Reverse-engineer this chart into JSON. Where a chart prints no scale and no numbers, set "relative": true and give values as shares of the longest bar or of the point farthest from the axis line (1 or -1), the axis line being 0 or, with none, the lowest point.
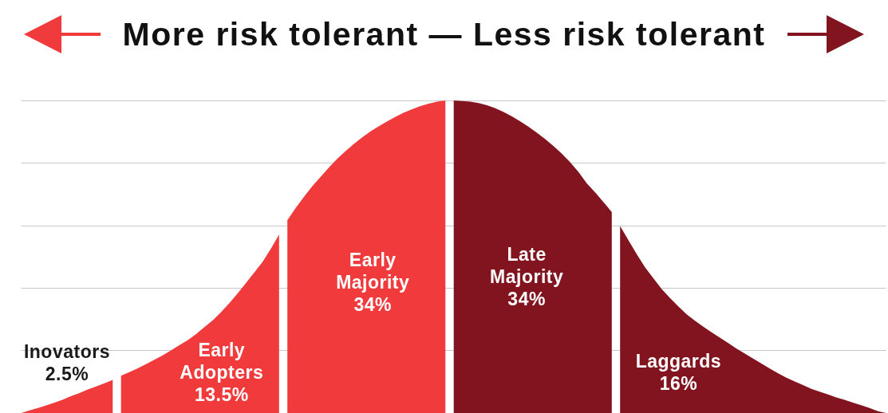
{
  "chart_data": {
    "type": "area",
    "title": "More risk tolerant — Less risk tolerant",
    "relative": true,
    "grid": "y",
    "tick_labels": false,
    "categories": [
      null,
      null,
      null,
      null,
      null,
      null,
      null,
      null,
      null,
      null,
      null,
      null,
      null,
      null,
      null,
      null,
      null,
      null,
      null,
      null,
      null,
      null,
      null,
      null,
      null,
      null,
      null,
      null,
      null,
      null,
      null,
      null,
      null,
      null,
      null,
      null,
      null,
      null,
      null,
      null,
      null,
      null,
      null,
      null,
      null,
      null,
      null,
      null,
      null,
      null,
      null,
      null,
      null,
      null,
      null,
      null,
      null,
      null,
      null,
      null,
      null,
      null,
      null,
      null,
      null,
      null,
      null,
      null,
      null,
      null,
      null,
      null,
      null,
      null,
      null,
      null,
      null,
      null,
      null,
      null,
      null,
      null,
      null,
      null,
      null,
      null,
      null,
      null,
      null,
      null,
      null,
      null,
      null,
      null,
      null,
      null,
      null,
      null,
      null,
      null,
      null,
      null,
      null,
      null,
      null
    ],
    "series": [
      {
        "name": "Inovators",
        "color": "#f03a3c",
        "values": [
          0,
          0.008,
          0.016,
          0.024,
          0.033,
          0.043,
          0.054,
          0.064,
          0.075,
          0.085,
          0.095,
          0.106,
          null,
          null,
          null,
          null,
          null,
          null,
          null,
          null,
          null,
          null,
          null,
          null,
          null,
          null,
          null,
          null,
          null,
          null,
          null,
          null,
          null,
          null,
          null,
          null,
          null,
          null,
          null,
          null,
          null,
          null,
          null,
          null,
          null,
          null,
          null,
          null,
          null,
          null,
          null,
          null,
          null,
          null,
          null,
          null,
          null,
          null,
          null,
          null,
          null,
          null,
          null,
          null,
          null,
          null,
          null,
          null,
          null,
          null,
          null,
          null,
          null,
          null,
          null,
          null,
          null,
          null,
          null,
          null,
          null,
          null,
          null,
          null,
          null,
          null,
          null,
          null,
          null,
          null,
          null,
          null,
          null,
          null,
          null,
          null,
          null,
          null,
          null,
          null,
          null,
          null,
          null,
          null,
          null
        ]
      },
      {
        "name": "Early Adopters",
        "color": "#f03a3c",
        "values": [
          null,
          null,
          null,
          null,
          null,
          null,
          null,
          null,
          null,
          null,
          null,
          null,
          0.119,
          0.131,
          0.143,
          0.156,
          0.17,
          0.184,
          0.2,
          0.217,
          0.233,
          0.252,
          0.274,
          0.296,
          0.322,
          0.351,
          0.382,
          0.415,
          0.449,
          0.483,
          0.525,
          0.571,
          null,
          null,
          null,
          null,
          null,
          null,
          null,
          null,
          null,
          null,
          null,
          null,
          null,
          null,
          null,
          null,
          null,
          null,
          null,
          null,
          null,
          null,
          null,
          null,
          null,
          null,
          null,
          null,
          null,
          null,
          null,
          null,
          null,
          null,
          null,
          null,
          null,
          null,
          null,
          null,
          null,
          null,
          null,
          null,
          null,
          null,
          null,
          null,
          null,
          null,
          null,
          null,
          null,
          null,
          null,
          null,
          null,
          null,
          null,
          null,
          null,
          null,
          null,
          null,
          null,
          null,
          null,
          null,
          null,
          null,
          null,
          null,
          null
        ]
      },
      {
        "name": "Early Majority",
        "color": "#f03a3c",
        "values": [
          null,
          null,
          null,
          null,
          null,
          null,
          null,
          null,
          null,
          null,
          null,
          null,
          null,
          null,
          null,
          null,
          null,
          null,
          null,
          null,
          null,
          null,
          null,
          null,
          null,
          null,
          null,
          null,
          null,
          null,
          null,
          null,
          0.617,
          0.656,
          0.692,
          0.726,
          0.756,
          0.786,
          0.814,
          0.838,
          0.861,
          0.882,
          0.901,
          0.918,
          0.933,
          0.948,
          0.961,
          0.972,
          0.982,
          0.99,
          0.996,
          1,
          null,
          null,
          null,
          null,
          null,
          null,
          null,
          null,
          null,
          null,
          null,
          null,
          null,
          null,
          null,
          null,
          null,
          null,
          null,
          null,
          null,
          null,
          null,
          null,
          null,
          null,
          null,
          null,
          null,
          null,
          null,
          null,
          null,
          null,
          null,
          null,
          null,
          null,
          null,
          null,
          null,
          null,
          null,
          null,
          null,
          null,
          null,
          null,
          null,
          null,
          null,
          null,
          null
        ]
      },
      {
        "name": "Late Majority",
        "color": "#82141f",
        "values": [
          null,
          null,
          null,
          null,
          null,
          null,
          null,
          null,
          null,
          null,
          null,
          null,
          null,
          null,
          null,
          null,
          null,
          null,
          null,
          null,
          null,
          null,
          null,
          null,
          null,
          null,
          null,
          null,
          null,
          null,
          null,
          null,
          null,
          null,
          null,
          null,
          null,
          null,
          null,
          null,
          null,
          null,
          null,
          null,
          null,
          null,
          null,
          null,
          null,
          null,
          null,
          null,
          1,
          0.998,
          0.996,
          0.992,
          0.985,
          0.975,
          0.963,
          0.949,
          0.933,
          0.916,
          0.897,
          0.876,
          0.854,
          0.83,
          0.802,
          0.771,
          0.735,
          0.706,
          0.675,
          0.643,
          null,
          null,
          null,
          null,
          null,
          null,
          null,
          null,
          null,
          null,
          null,
          null,
          null,
          null,
          null,
          null,
          null,
          null,
          null,
          null,
          null,
          null,
          null,
          null,
          null,
          null,
          null,
          null,
          null,
          null,
          null,
          null,
          null
        ]
      },
      {
        "name": "Laggards",
        "color": "#82141f",
        "values": [
          null,
          null,
          null,
          null,
          null,
          null,
          null,
          null,
          null,
          null,
          null,
          null,
          null,
          null,
          null,
          null,
          null,
          null,
          null,
          null,
          null,
          null,
          null,
          null,
          null,
          null,
          null,
          null,
          null,
          null,
          null,
          null,
          null,
          null,
          null,
          null,
          null,
          null,
          null,
          null,
          null,
          null,
          null,
          null,
          null,
          null,
          null,
          null,
          null,
          null,
          null,
          null,
          null,
          null,
          null,
          null,
          null,
          null,
          null,
          null,
          null,
          null,
          null,
          null,
          null,
          null,
          null,
          null,
          null,
          null,
          null,
          null,
          0.598,
          0.553,
          0.508,
          0.466,
          0.431,
          0.397,
          0.368,
          0.341,
          0.316,
          0.295,
          0.276,
          0.258,
          0.241,
          0.224,
          0.206,
          0.19,
          0.174,
          0.158,
          0.142,
          0.127,
          0.113,
          0.101,
          0.089,
          0.077,
          0.068,
          0.059,
          0.05,
          0.042,
          0.033,
          0.025,
          0.016,
          0.006,
          0
        ]
      }
    ],
    "annotations": [
      "2.5%",
      "13.5%",
      "34%",
      "34%",
      "16%"
    ]
  }
}
